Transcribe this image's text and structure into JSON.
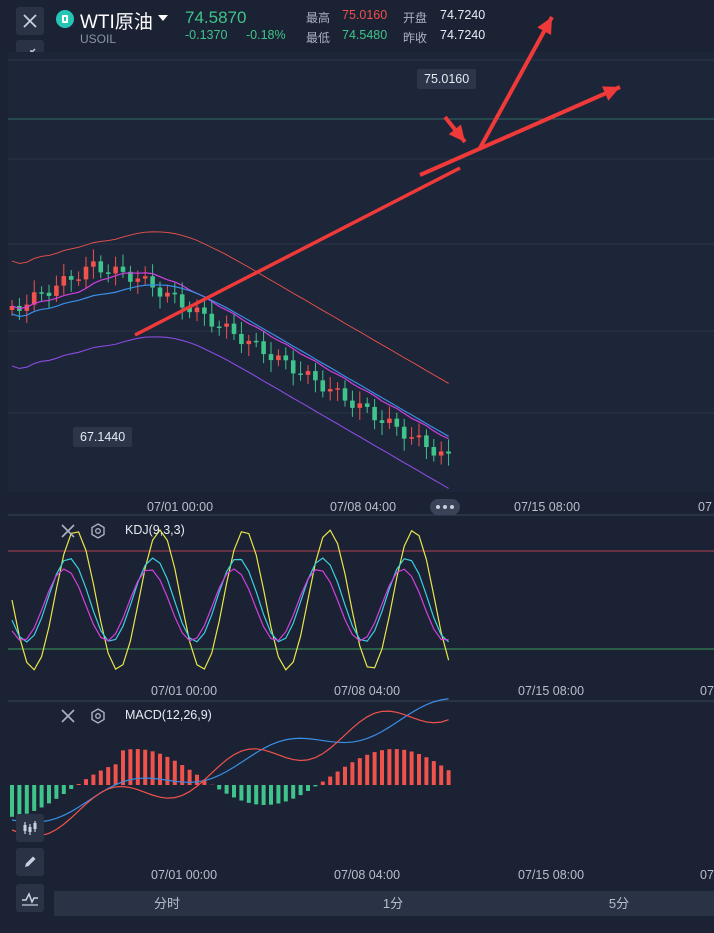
{
  "header": {
    "symbol": "WTI原油",
    "code": "USOIL",
    "price": "74.5870",
    "change": "-0.1370",
    "change_pct": "-0.18%",
    "high_label": "最高",
    "high_value": "75.0160",
    "low_label": "最低",
    "low_value": "74.5480",
    "open_label": "开盘",
    "open_value": "74.7240",
    "prev_close_label": "昨收",
    "prev_close_value": "74.7240"
  },
  "main_chart": {
    "max_tag": "75.0160",
    "min_tag": "67.1440",
    "x_ticks": [
      "07/01 00:00",
      "07/08 04:00",
      "07/15 08:00",
      "07"
    ]
  },
  "kdj": {
    "label": "KDJ(9,3,3)",
    "x_ticks": [
      "07/01 00:00",
      "07/08 04:00",
      "07/15 08:00",
      "07/"
    ]
  },
  "macd": {
    "label": "MACD(12,26,9)",
    "x_ticks": [
      "07/01 00:00",
      "07/08 04:00",
      "07/15 08:00",
      "07/"
    ]
  },
  "timeframes": [
    "分时",
    "1分",
    "5分"
  ],
  "colors": {
    "up": "#f0524c",
    "down": "#3fc48b",
    "background": "#1b2233",
    "ma_blue": "#3a8ee6",
    "ma_magenta": "#d040e0",
    "kdj_k": "#e8e64a",
    "kdj_d": "#39d0e0",
    "kdj_j": "#d040e0",
    "arrow": "#f03a3a"
  }
}
